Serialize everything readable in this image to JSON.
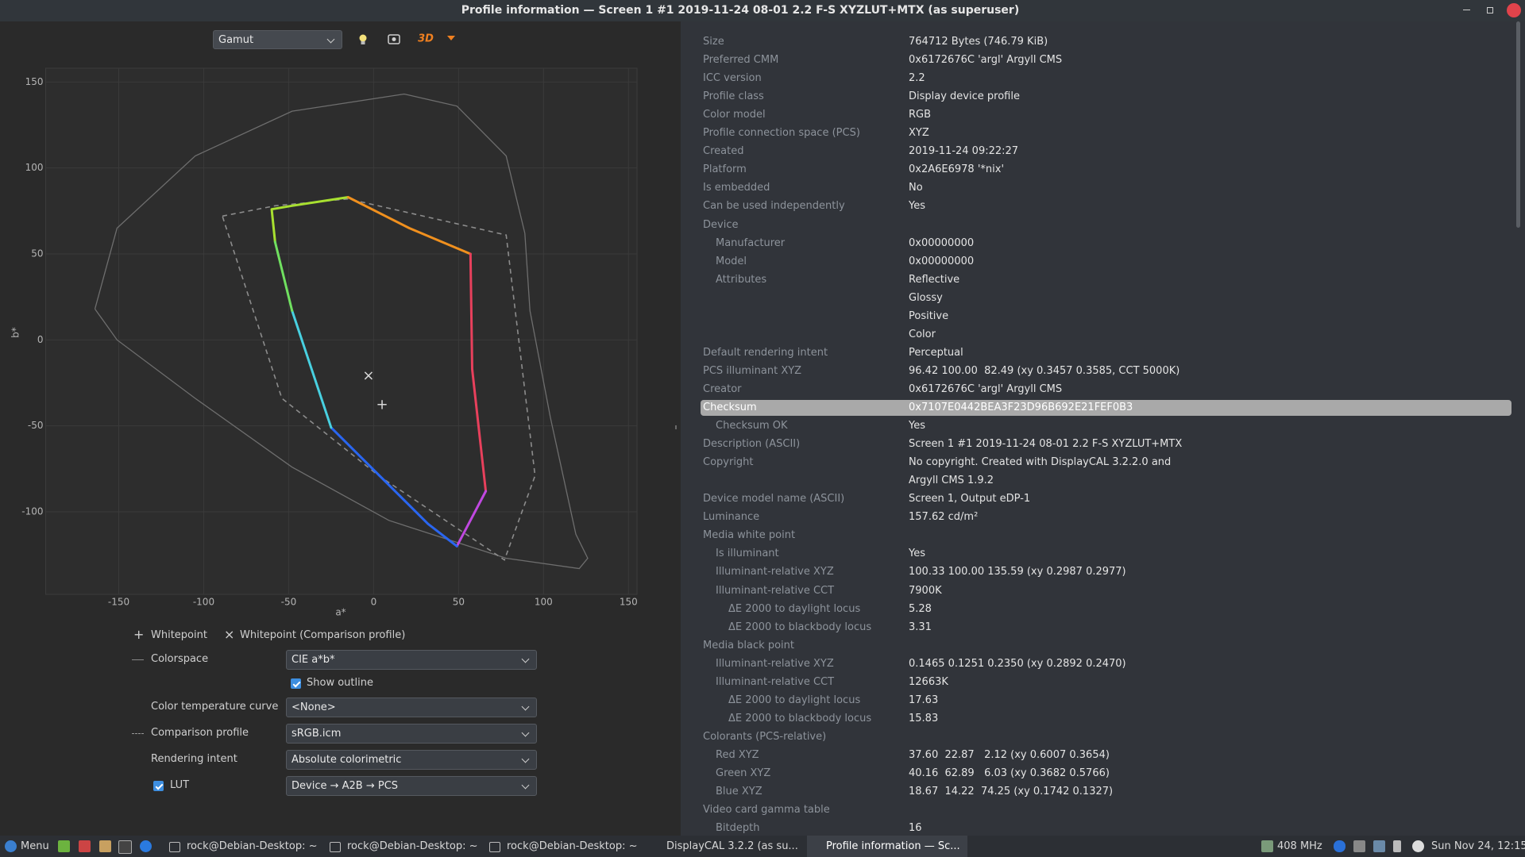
{
  "window": {
    "title": "Profile information — Screen 1 #1 2019-11-24 08-01 2.2 F-S XYZLUT+MTX (as superuser)"
  },
  "toolbar": {
    "view": "Gamut",
    "button_3d": "3D"
  },
  "chart_data": {
    "type": "line",
    "x_label": "a*",
    "y_label": "b*",
    "xlim": [
      -193,
      155
    ],
    "ylim": [
      -148,
      158
    ],
    "xticks": [
      -150,
      -100,
      -50,
      0,
      50,
      100,
      150
    ],
    "yticks": [
      150,
      100,
      50,
      0,
      -50,
      -100
    ],
    "grid": true,
    "series": [
      {
        "color": "#6e6e6e",
        "style": "solid",
        "x": [
          -164,
          -151,
          -105,
          -48,
          18,
          49,
          78,
          89,
          92,
          104,
          119,
          126,
          121,
          78,
          9,
          -48,
          -105,
          -151,
          -164
        ],
        "y": [
          18,
          65,
          107,
          133,
          143,
          136,
          107,
          62,
          17,
          -45,
          -113,
          -127,
          -133,
          -127,
          -105,
          -74,
          -34,
          0,
          18
        ]
      },
      {
        "color": "#8c8c8c",
        "style": "dashed",
        "x": [
          -89,
          -58,
          -15,
          78,
          95,
          77,
          3,
          -54,
          -89
        ],
        "y": [
          72,
          78,
          82,
          61,
          -79,
          -128,
          -79,
          -34,
          72
        ]
      },
      {
        "color": "#a8e030",
        "style": "bold",
        "x": [
          -58,
          -60,
          -48,
          -15
        ],
        "y": [
          57,
          76,
          78,
          83
        ]
      },
      {
        "color": "#f0901e",
        "style": "bold",
        "x": [
          -15,
          21,
          57
        ],
        "y": [
          83,
          65,
          50
        ]
      },
      {
        "color": "#e8405c",
        "style": "bold",
        "x": [
          57,
          58,
          66
        ],
        "y": [
          50,
          -17,
          -88
        ]
      },
      {
        "color": "#c048e0",
        "style": "bold",
        "x": [
          66,
          49
        ],
        "y": [
          -88,
          -120
        ]
      },
      {
        "color": "#2a66f0",
        "style": "bold",
        "x": [
          49,
          32,
          -25
        ],
        "y": [
          -120,
          -107,
          -51
        ]
      },
      {
        "color": "#48d0e0",
        "style": "bold",
        "x": [
          -25,
          -48
        ],
        "y": [
          -51,
          17
        ]
      },
      {
        "color": "#70e060",
        "style": "bold",
        "x": [
          -48,
          -58
        ],
        "y": [
          17,
          57
        ]
      }
    ],
    "markers": [
      {
        "symbol": "+",
        "label": "Whitepoint",
        "x": 5,
        "y": -38
      },
      {
        "symbol": "×",
        "label": "Whitepoint (Comparison profile)",
        "x": -3,
        "y": -21
      }
    ]
  },
  "controls": {
    "colorspace": {
      "label": "Colorspace",
      "value": "CIE a*b*"
    },
    "show_outline": {
      "label": "Show outline",
      "checked": true
    },
    "temperature_curve": {
      "label": "Color temperature curve",
      "value": "<None>"
    },
    "comparison_profile": {
      "label": "Comparison profile",
      "value": "sRGB.icm"
    },
    "rendering_intent": {
      "label": "Rendering intent",
      "value": "Absolute colorimetric"
    },
    "lut": {
      "label": "LUT",
      "checked": true,
      "value": "Device → A2B → PCS"
    }
  },
  "profile_info": {
    "rows": [
      {
        "label": "Size",
        "value": "764712 Bytes (746.79 KiB)"
      },
      {
        "label": "Preferred CMM",
        "value": "0x6172676C 'argl' Argyll CMS"
      },
      {
        "label": "ICC version",
        "value": "2.2"
      },
      {
        "label": "Profile class",
        "value": "Display device profile"
      },
      {
        "label": "Color model",
        "value": "RGB"
      },
      {
        "label": "Profile connection space (PCS)",
        "value": "XYZ"
      },
      {
        "label": "Created",
        "value": "2019-11-24 09:22:27"
      },
      {
        "label": "Platform",
        "value": "0x2A6E6978 '*nix'"
      },
      {
        "label": "Is embedded",
        "value": "No"
      },
      {
        "label": "Can be used independently",
        "value": "Yes"
      },
      {
        "label": "Device",
        "children": [
          {
            "label": "Manufacturer",
            "value": "0x00000000"
          },
          {
            "label": "Model",
            "value": "0x00000000"
          },
          {
            "label": "Attributes",
            "value": [
              "Reflective",
              "Glossy",
              "Positive",
              "Color"
            ]
          }
        ]
      },
      {
        "label": "Default rendering intent",
        "value": "Perceptual"
      },
      {
        "label": "PCS illuminant XYZ",
        "value": "96.42 100.00  82.49 (xy 0.3457 0.3585, CCT 5000K)"
      },
      {
        "label": "Creator",
        "value": "0x6172676C 'argl' Argyll CMS"
      },
      {
        "label": "Checksum",
        "value": "0x7107E0442BEA3F23D96B692E21FEF0B3",
        "selected": true,
        "children": [
          {
            "label": "Checksum OK",
            "value": "Yes"
          }
        ]
      },
      {
        "label": "Description (ASCII)",
        "value": "Screen 1 #1 2019-11-24 08-01 2.2 F-S XYZLUT+MTX"
      },
      {
        "label": "Copyright",
        "value": [
          "No copyright. Created with DisplayCAL 3.2.2.0 and",
          "Argyll CMS 1.9.2"
        ]
      },
      {
        "label": "Device model name (ASCII)",
        "value": "Screen 1, Output eDP-1"
      },
      {
        "label": "Luminance",
        "value": "157.62 cd/m²"
      },
      {
        "label": "Media white point",
        "children": [
          {
            "label": "Is illuminant",
            "value": "Yes"
          },
          {
            "label": "Illuminant-relative XYZ",
            "value": "100.33 100.00 135.59 (xy 0.2987 0.2977)"
          },
          {
            "label": "Illuminant-relative CCT",
            "value": "7900K",
            "children": [
              {
                "label": "ΔE 2000 to daylight locus",
                "value": "5.28"
              },
              {
                "label": "ΔE 2000 to blackbody locus",
                "value": "3.31"
              }
            ]
          }
        ]
      },
      {
        "label": "Media black point",
        "children": [
          {
            "label": "Illuminant-relative XYZ",
            "value": "0.1465 0.1251 0.2350 (xy 0.2892 0.2470)"
          },
          {
            "label": "Illuminant-relative CCT",
            "value": "12663K",
            "children": [
              {
                "label": "ΔE 2000 to daylight locus",
                "value": "17.63"
              },
              {
                "label": "ΔE 2000 to blackbody locus",
                "value": "15.83"
              }
            ]
          }
        ]
      },
      {
        "label": "Colorants (PCS-relative)",
        "children": [
          {
            "label": "Red XYZ",
            "value": "37.60  22.87   2.12 (xy 0.6007 0.3654)"
          },
          {
            "label": "Green XYZ",
            "value": "40.16  62.89   6.03 (xy 0.3682 0.5766)"
          },
          {
            "label": "Blue XYZ",
            "value": "18.67  14.22  74.25 (xy 0.1742 0.1327)"
          }
        ]
      },
      {
        "label": "Video card gamma table",
        "children": [
          {
            "label": "Bitdepth",
            "value": "16"
          }
        ]
      }
    ]
  },
  "taskbar": {
    "menu": "Menu",
    "tasks": [
      "rock@Debian-Desktop: ~",
      "rock@Debian-Desktop: ~",
      "rock@Debian-Desktop: ~",
      "DisplayCAL 3.2.2 (as su...",
      "Profile information — Sc..."
    ],
    "cpu": "408 MHz",
    "clock": "Sun Nov 24, 12:15"
  }
}
